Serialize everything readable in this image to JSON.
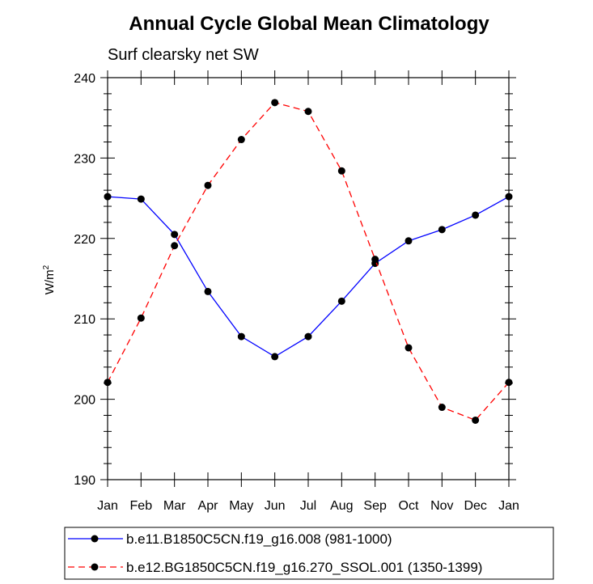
{
  "chart_data": {
    "type": "line",
    "title": "Annual Cycle Global Mean Climatology",
    "subtitle": "Surf clearsky net SW",
    "ylabel": "W/m",
    "ylabel_superscript": "2",
    "xlabel": "",
    "ylim": [
      190,
      240
    ],
    "yticks": [
      190,
      200,
      210,
      220,
      230,
      240
    ],
    "categories": [
      "Jan",
      "Feb",
      "Mar",
      "Apr",
      "May",
      "Jun",
      "Jul",
      "Aug",
      "Sep",
      "Oct",
      "Nov",
      "Dec",
      "Jan"
    ],
    "series": [
      {
        "name": "b.e11.B1850C5CN.f19_g16.008 (981-1000)",
        "color": "#0000ff",
        "style": "solid",
        "values": [
          225.2,
          224.9,
          220.5,
          213.4,
          207.8,
          205.3,
          207.8,
          212.2,
          216.9,
          219.7,
          221.1,
          222.9,
          225.2
        ]
      },
      {
        "name": "b.e12.BG1850C5CN.f19_g16.270_SSOL.001 (1350-1399)",
        "color": "#ff0000",
        "style": "dashed",
        "values": [
          202.1,
          210.1,
          219.1,
          226.6,
          232.3,
          236.9,
          235.8,
          228.4,
          217.4,
          206.4,
          199.0,
          197.4,
          202.1
        ]
      }
    ],
    "marker_color": "#000000"
  }
}
